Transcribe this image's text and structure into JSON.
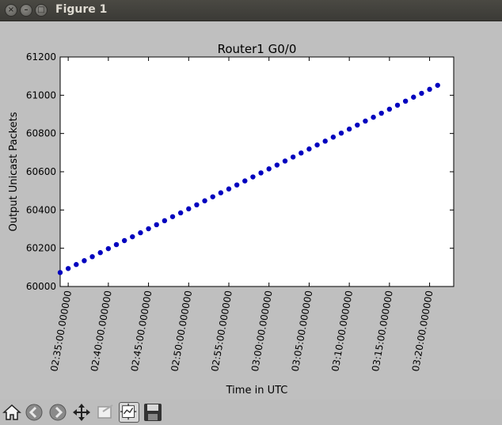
{
  "window": {
    "title": "Figure 1"
  },
  "toolbar": {
    "buttons": [
      "home-icon",
      "back-icon",
      "forward-icon",
      "pan-icon",
      "zoom-icon",
      "subplots-icon",
      "save-icon"
    ]
  },
  "chart_data": {
    "type": "scatter",
    "title": "Router1 G0/0",
    "xlabel": "Time in UTC",
    "ylabel": "Output Unicast Packets",
    "ylim": [
      60000,
      61200
    ],
    "yticks": [
      60000,
      60200,
      60400,
      60600,
      60800,
      61000,
      61200
    ],
    "yticklabels": [
      "60000",
      "60200",
      "60400",
      "60600",
      "60800",
      "61000",
      "61200"
    ],
    "xlim_minutes": [
      34,
      83
    ],
    "xticks_minutes": [
      35,
      40,
      45,
      50,
      55,
      60,
      65,
      70,
      75,
      80
    ],
    "xticklabels": [
      "02:35:00.000000",
      "02:40:00.000000",
      "02:45:00.000000",
      "02:50:00.000000",
      "02:55:00.000000",
      "03:00:00.000000",
      "03:05:00.000000",
      "03:10:00.000000",
      "03:15:00.000000",
      "03:20:00.000000"
    ],
    "x_start_minute": 34,
    "x_step_minutes": 1,
    "values": [
      60073,
      60094,
      60115,
      60135,
      60156,
      60177,
      60198,
      60219,
      60240,
      60260,
      60281,
      60302,
      60323,
      60344,
      60365,
      60385,
      60406,
      60427,
      60448,
      60469,
      60490,
      60510,
      60531,
      60552,
      60573,
      60594,
      60615,
      60635,
      60656,
      60677,
      60698,
      60719,
      60740,
      60760,
      60781,
      60802,
      60823,
      60844,
      60865,
      60885,
      60906,
      60927,
      60948,
      60969,
      60990,
      61010,
      61031,
      61052
    ],
    "color": "#0000bf"
  }
}
